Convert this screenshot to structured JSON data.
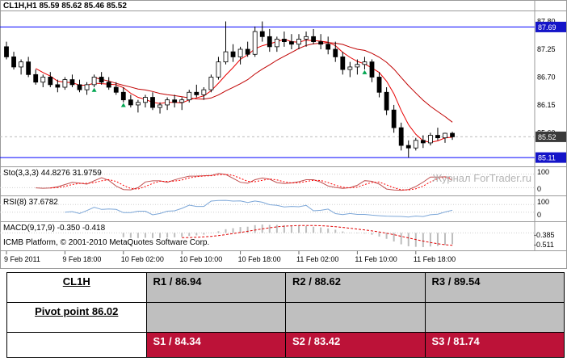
{
  "header": {
    "symbol_label": "CL1H,H1  85.59 85.62 85.46 85.52"
  },
  "watermark": "Журнал ForTrader.ru",
  "copyright": "ICMB Platform, © 2001-2010 MetaQuotes Software Corp.",
  "indicators": {
    "sto": {
      "label": "Sto(3,3,3) 44.8276 31.9759",
      "scale": [
        "100",
        "0"
      ]
    },
    "rsi": {
      "label": "RSI(8) 37.6782",
      "scale": [
        "100",
        "0"
      ]
    },
    "macd": {
      "label": "MACD(9,17,9) -0.350 -0.418",
      "scale": [
        "-0.385",
        "-0.511"
      ]
    }
  },
  "chart_data": {
    "type": "candlestick",
    "symbol": "CL1H",
    "timeframe": "H1",
    "last_quote": {
      "open": "85.59",
      "high": "85.62",
      "low": "85.46",
      "close": "85.52"
    },
    "ylim": [
      85.0,
      88.0
    ],
    "price_ticks": [
      "87.80",
      "87.25",
      "86.70",
      "86.15",
      "85.60"
    ],
    "level_lines": [
      {
        "price": 87.69,
        "label": "87.69"
      },
      {
        "price": 85.11,
        "label": "85.11"
      }
    ],
    "current_price": {
      "price": 85.52,
      "label": "85.52"
    },
    "time_labels": [
      "9 Feb 2011",
      "9 Feb 18:00",
      "10 Feb 02:00",
      "10 Feb 10:00",
      "10 Feb 18:00",
      "11 Feb 02:00",
      "11 Feb 10:00",
      "11 Feb 18:00"
    ],
    "candles": [
      [
        87.3,
        87.4,
        87.05,
        87.1
      ],
      [
        87.1,
        87.2,
        86.85,
        86.9
      ],
      [
        86.9,
        87.05,
        86.75,
        87.0
      ],
      [
        87.0,
        87.1,
        86.7,
        86.75
      ],
      [
        86.75,
        86.85,
        86.55,
        86.6
      ],
      [
        86.6,
        86.75,
        86.5,
        86.7
      ],
      [
        86.7,
        86.8,
        86.5,
        86.55
      ],
      [
        86.55,
        86.65,
        86.4,
        86.5
      ],
      [
        86.5,
        86.7,
        86.45,
        86.65
      ],
      [
        86.65,
        86.75,
        86.5,
        86.55
      ],
      [
        86.55,
        86.65,
        86.4,
        86.45
      ],
      [
        86.45,
        86.6,
        86.35,
        86.55
      ],
      [
        86.55,
        86.75,
        86.5,
        86.7
      ],
      [
        86.7,
        86.8,
        86.55,
        86.6
      ],
      [
        86.6,
        86.7,
        86.45,
        86.5
      ],
      [
        86.5,
        86.6,
        86.35,
        86.4
      ],
      [
        86.4,
        86.5,
        86.2,
        86.25
      ],
      [
        86.25,
        86.35,
        86.1,
        86.15
      ],
      [
        86.15,
        86.25,
        86.0,
        86.2
      ],
      [
        86.2,
        86.35,
        86.1,
        86.3
      ],
      [
        86.3,
        86.4,
        86.05,
        86.1
      ],
      [
        86.1,
        86.2,
        85.98,
        86.15
      ],
      [
        86.15,
        86.3,
        86.05,
        86.25
      ],
      [
        86.25,
        86.35,
        86.1,
        86.2
      ],
      [
        86.2,
        86.3,
        86.05,
        86.25
      ],
      [
        86.25,
        86.45,
        86.2,
        86.4
      ],
      [
        86.4,
        86.55,
        86.3,
        86.35
      ],
      [
        86.35,
        86.5,
        86.25,
        86.45
      ],
      [
        86.45,
        86.75,
        86.4,
        86.7
      ],
      [
        86.7,
        87.1,
        86.65,
        87.0
      ],
      [
        87.0,
        87.8,
        86.95,
        87.2
      ],
      [
        87.2,
        87.35,
        87.0,
        87.1
      ],
      [
        87.1,
        87.3,
        86.95,
        87.25
      ],
      [
        87.25,
        87.4,
        87.1,
        87.15
      ],
      [
        87.15,
        87.7,
        87.1,
        87.6
      ],
      [
        87.6,
        87.8,
        87.4,
        87.5
      ],
      [
        87.5,
        87.65,
        87.2,
        87.3
      ],
      [
        87.3,
        87.5,
        87.2,
        87.45
      ],
      [
        87.45,
        87.6,
        87.3,
        87.4
      ],
      [
        87.4,
        87.55,
        87.25,
        87.35
      ],
      [
        87.35,
        87.55,
        87.25,
        87.45
      ],
      [
        87.45,
        87.6,
        87.3,
        87.5
      ],
      [
        87.5,
        87.65,
        87.35,
        87.4
      ],
      [
        87.4,
        87.55,
        87.25,
        87.35
      ],
      [
        87.35,
        87.5,
        87.15,
        87.25
      ],
      [
        87.25,
        87.4,
        87.0,
        87.1
      ],
      [
        87.1,
        87.2,
        86.75,
        86.85
      ],
      [
        86.85,
        87.0,
        86.7,
        86.9
      ],
      [
        86.9,
        87.05,
        86.75,
        86.95
      ],
      [
        86.95,
        87.1,
        86.85,
        87.0
      ],
      [
        87.0,
        87.05,
        86.6,
        86.7
      ],
      [
        86.7,
        86.8,
        86.3,
        86.4
      ],
      [
        86.4,
        86.5,
        85.95,
        86.05
      ],
      [
        86.05,
        86.15,
        85.6,
        85.7
      ],
      [
        85.7,
        85.8,
        85.25,
        85.35
      ],
      [
        85.35,
        85.45,
        85.11,
        85.3
      ],
      [
        85.3,
        85.5,
        85.25,
        85.45
      ],
      [
        85.45,
        85.55,
        85.3,
        85.4
      ],
      [
        85.4,
        85.6,
        85.35,
        85.55
      ],
      [
        85.55,
        85.7,
        85.45,
        85.5
      ],
      [
        85.5,
        85.6,
        85.4,
        85.59
      ],
      [
        85.59,
        85.62,
        85.46,
        85.52
      ]
    ],
    "markers": [
      {
        "index": 12,
        "price": 86.44
      },
      {
        "index": 16,
        "price": 86.14
      },
      {
        "index": 49,
        "price": 86.79
      }
    ],
    "moving_average_periods": [
      5,
      13
    ]
  },
  "table": {
    "symbol": "CL1H",
    "pivot_label": "Pivot point 86.02",
    "resistance": [
      "R1 / 86.94",
      "R2 / 88.62",
      "R3 / 89.54"
    ],
    "support": [
      "S1 / 84.34",
      "S2 / 83.42",
      "S3 / 81.74"
    ]
  },
  "colors": {
    "level_line": "#0000ff",
    "badge_level_bg": "#1414c8",
    "badge_current_bg": "#3a3a3a",
    "ma_fast": "#e80000",
    "ma_slow": "#c00000",
    "sto_main": "#c05050",
    "sto_signal": "#ff0000",
    "rsi_line": "#7da7d8",
    "macd_hist": "#bdbdbd",
    "macd_signal": "#e00000",
    "up_marker": "#00a550",
    "table_gray": "#bfbfbf",
    "table_red": "#bc1238",
    "watermark": "#b4b4b4"
  }
}
